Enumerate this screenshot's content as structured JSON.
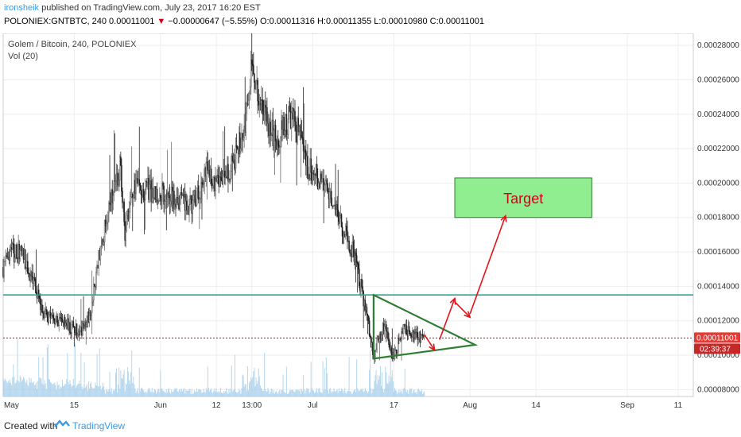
{
  "header": {
    "author": "ironsheik",
    "published_text": "published on TradingView.com, July 23, 2017 16:20 EST",
    "symbol": "POLONIEX:GNTBTC, 240",
    "last_price": "0.00011001",
    "change_arrow": "▼",
    "change": "−0.00000647 (−5.55%)",
    "ohlc": "O:0.00011316 H:0.00011355 L:0.00010980 C:0.00011001"
  },
  "footer": {
    "created_with": "Created with",
    "brand": "TradingView"
  },
  "colors": {
    "up_candle": "#6b6b6b",
    "down_candle": "#222222",
    "volume": "#9ecae8",
    "level_line": "#26a69a",
    "last_price_line": "#d0021b",
    "triangle": "#2e7d32",
    "target_fill": "#90ee90",
    "arrow": "#e3141a"
  },
  "chart_data": {
    "type": "candlestick",
    "title": "Golem / Bitcoin, 240, POLONIEX",
    "indicator": "Vol (20)",
    "y_ticks": [
      "0.00028000",
      "0.00026000",
      "0.00024000",
      "0.00022000",
      "0.00020000",
      "0.00018000",
      "0.00016000",
      "0.00014000",
      "0.00012000",
      "0.00010000",
      "0.00008000"
    ],
    "ylim": [
      7.6e-05,
      0.000287
    ],
    "x_ticks": [
      "May",
      "15",
      "Jun",
      "12",
      "13:00",
      "Jul",
      "17",
      "Aug",
      "14",
      "Sep",
      "11"
    ],
    "x_tick_dates": [
      "2017-05-01",
      "2017-05-15",
      "2017-06-01",
      "2017-06-12",
      "2017-06-19",
      "2017-07-01",
      "2017-07-17",
      "2017-08-01",
      "2017-08-14",
      "2017-09-01",
      "2017-09-11"
    ],
    "xlim": [
      "2017-05-01",
      "2017-09-14"
    ],
    "close_path": [
      {
        "date": "2017-05-01",
        "close": 0.000151
      },
      {
        "date": "2017-05-03",
        "close": 0.00016
      },
      {
        "date": "2017-05-05",
        "close": 0.000158
      },
      {
        "date": "2017-05-07",
        "close": 0.000142
      },
      {
        "date": "2017-05-09",
        "close": 0.000125
      },
      {
        "date": "2017-05-11",
        "close": 0.00012
      },
      {
        "date": "2017-05-13",
        "close": 0.000118
      },
      {
        "date": "2017-05-15",
        "close": 0.000116
      },
      {
        "date": "2017-05-16",
        "close": 0.000113
      },
      {
        "date": "2017-05-18",
        "close": 0.000123
      },
      {
        "date": "2017-05-20",
        "close": 0.00016
      },
      {
        "date": "2017-05-22",
        "close": 0.000186
      },
      {
        "date": "2017-05-24",
        "close": 0.00021
      },
      {
        "date": "2017-05-25",
        "close": 0.000171
      },
      {
        "date": "2017-05-27",
        "close": 0.000198
      },
      {
        "date": "2017-05-30",
        "close": 0.000196
      },
      {
        "date": "2017-06-03",
        "close": 0.000192
      },
      {
        "date": "2017-06-07",
        "close": 0.000186
      },
      {
        "date": "2017-06-10",
        "close": 0.000206
      },
      {
        "date": "2017-06-13",
        "close": 0.0002
      },
      {
        "date": "2017-06-16",
        "close": 0.000216
      },
      {
        "date": "2017-06-18",
        "close": 0.00024
      },
      {
        "date": "2017-06-19",
        "close": 0.00027
      },
      {
        "date": "2017-06-21",
        "close": 0.00024
      },
      {
        "date": "2017-06-24",
        "close": 0.000225
      },
      {
        "date": "2017-06-27",
        "close": 0.00024
      },
      {
        "date": "2017-06-30",
        "close": 0.00021
      },
      {
        "date": "2017-07-03",
        "close": 0.0002
      },
      {
        "date": "2017-07-06",
        "close": 0.00018
      },
      {
        "date": "2017-07-09",
        "close": 0.00016
      },
      {
        "date": "2017-07-11",
        "close": 0.000133
      },
      {
        "date": "2017-07-13",
        "close": 0.0001
      },
      {
        "date": "2017-07-15",
        "close": 0.000118
      },
      {
        "date": "2017-07-17",
        "close": 9.8e-05
      },
      {
        "date": "2017-07-19",
        "close": 0.000117
      },
      {
        "date": "2017-07-21",
        "close": 0.00011
      },
      {
        "date": "2017-07-23",
        "close": 0.00011
      }
    ],
    "volume_series": {
      "name": "Vol (20)",
      "shape": "spikes near May 25, Jun 19 and Jul 15, declining into late July"
    },
    "horizontal_lines": [
      {
        "price": 0.000135,
        "color": "#26a69a",
        "style": "solid"
      },
      {
        "price": 0.00011001,
        "color": "#d0021b",
        "style": "dotted"
      }
    ],
    "triangle": [
      {
        "date": "2017-07-13",
        "price": 0.000135
      },
      {
        "date": "2017-07-13",
        "price": 9.8e-05
      },
      {
        "date": "2017-08-02",
        "price": 0.000106
      }
    ],
    "target_box": {
      "label": "Target",
      "start": "2017-07-29",
      "end": "2017-08-25",
      "top": 0.000203,
      "bottom": 0.00018
    },
    "projection_arrows": [
      [
        {
          "date": "2017-07-23",
          "price": 0.000112
        },
        {
          "date": "2017-07-25",
          "price": 0.000103
        }
      ],
      [
        {
          "date": "2017-07-26",
          "price": 0.000109
        },
        {
          "date": "2017-07-29",
          "price": 0.000133
        }
      ],
      [
        {
          "date": "2017-07-29",
          "price": 0.000131
        },
        {
          "date": "2017-08-01",
          "price": 0.000122
        }
      ],
      [
        {
          "date": "2017-08-01",
          "price": 0.000124
        },
        {
          "date": "2017-08-08",
          "price": 0.000181
        }
      ]
    ],
    "price_labels": [
      "0.00011001",
      "02:39:37"
    ],
    "grid": true
  }
}
